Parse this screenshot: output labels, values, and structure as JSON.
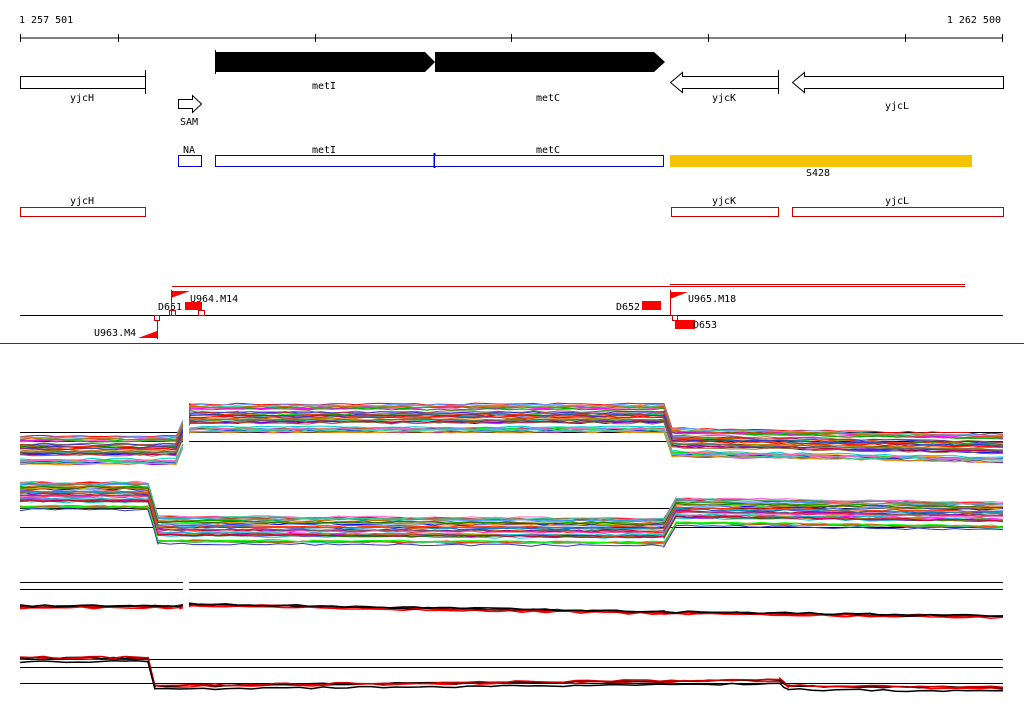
{
  "ruler": {
    "start_label": "1 257 501",
    "end_label": "1 262 500"
  },
  "genes": [
    {
      "name": "yjcH",
      "strand": "-",
      "filled": false
    },
    {
      "name": "metI",
      "strand": "+",
      "filled": true
    },
    {
      "name": "metC",
      "strand": "+",
      "filled": true
    },
    {
      "name": "yjcK",
      "strand": "-",
      "filled": false
    },
    {
      "name": "yjcL",
      "strand": "-",
      "filled": false
    }
  ],
  "riboswitch": {
    "name": "SAM"
  },
  "segment_track_blue": [
    "NA",
    "metI",
    "metC"
  ],
  "segment_track_orange": {
    "name": "S428",
    "color": "#f5c400"
  },
  "segment_track_red": [
    "yjcH",
    "yjcK",
    "yjcL"
  ],
  "features": [
    "D651",
    "U964.M14",
    "D652",
    "U965.M18",
    "U963.M4",
    "D653"
  ],
  "colors": {
    "feature_red": "#ff0000",
    "blue_outline": "#0000cc",
    "red_outline": "#cc0000",
    "orange": "#f5c400"
  }
}
